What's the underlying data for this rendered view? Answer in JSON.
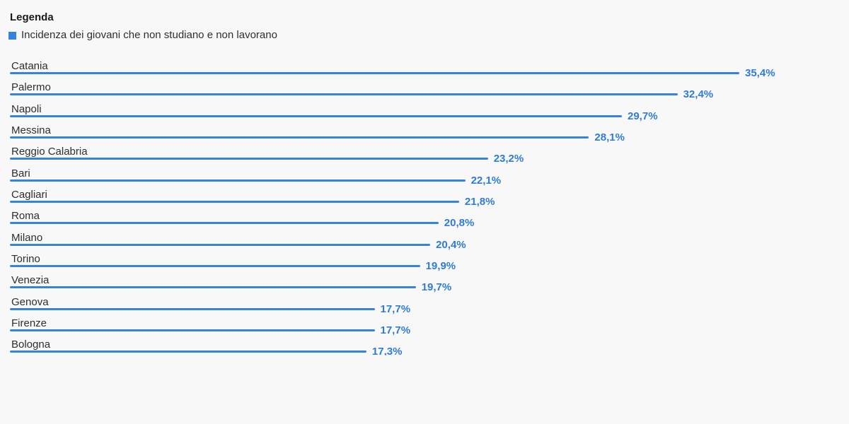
{
  "legend": {
    "title": "Legenda",
    "series_label": "Incidenza dei giovani che non studiano e non lavorano"
  },
  "colors": {
    "background": "#f8f8f8",
    "bar": "#3583df",
    "value_label": "#2f7cd6",
    "category_label": "#2e2e2e",
    "legend_swatch": "#3583df"
  },
  "chart_data": {
    "type": "bar",
    "orientation": "horizontal",
    "title": "Legenda",
    "series_name": "Incidenza dei giovani che non studiano e non lavorano",
    "categories": [
      "Catania",
      "Palermo",
      "Napoli",
      "Messina",
      "Reggio Calabria",
      "Bari",
      "Cagliari",
      "Roma",
      "Milano",
      "Torino",
      "Venezia",
      "Genova",
      "Firenze",
      "Bologna"
    ],
    "values": [
      35.4,
      32.4,
      29.7,
      28.1,
      23.2,
      22.1,
      21.8,
      20.8,
      20.4,
      19.9,
      19.7,
      17.7,
      17.7,
      17.3
    ],
    "value_labels": [
      "35,4%",
      "32,4%",
      "29,7%",
      "28,1%",
      "23,2%",
      "22,1%",
      "21,8%",
      "20,8%",
      "20,4%",
      "19,9%",
      "19,7%",
      "17,7%",
      "17,7%",
      "17,3%"
    ],
    "unit": "%",
    "xlim": [
      0,
      35.4
    ],
    "grid": false,
    "legend_position": "top-left",
    "value_label_format": "decimal-comma"
  }
}
